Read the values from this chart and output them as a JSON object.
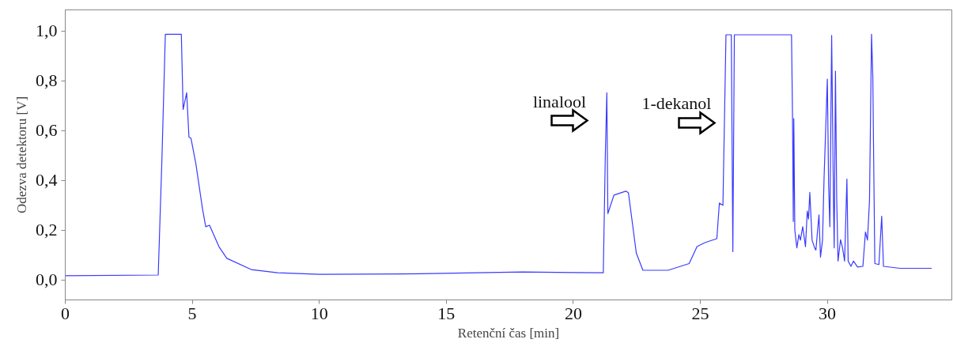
{
  "chart_data": {
    "type": "line",
    "xlabel": "Retenční čas [min]",
    "ylabel": "Odezva detektoru [V]",
    "x": [
      0,
      3.66,
      3.81,
      3.94,
      4.57,
      4.64,
      4.78,
      4.87,
      4.95,
      5.14,
      5.4,
      5.53,
      5.68,
      6.05,
      6.36,
      7.32,
      8.36,
      10,
      14,
      18,
      20,
      21.18,
      21.26,
      21.32,
      21.36,
      21.6,
      22.07,
      22.17,
      22.48,
      22.74,
      23.73,
      24.56,
      24.87,
      25.18,
      25.65,
      25.75,
      25.89,
      26.01,
      26.22,
      26.28,
      26.34,
      28.59,
      28.63,
      28.66,
      28.68,
      28.72,
      28.8,
      28.88,
      28.94,
      29.03,
      29.14,
      29.21,
      29.26,
      29.31,
      29.4,
      29.5,
      29.55,
      29.67,
      29.73,
      29.81,
      29.87,
      30.0,
      30.05,
      30.1,
      30.17,
      30.24,
      30.27,
      30.32,
      30.37,
      30.42,
      30.52,
      30.6,
      30.68,
      30.77,
      30.82,
      30.93,
      31.03,
      31.19,
      31.4,
      31.5,
      31.58,
      31.66,
      31.74,
      31.79,
      31.83,
      31.87,
      32.03,
      32.14,
      32.21,
      32.86,
      34.11
    ],
    "series": [
      {
        "color": "#3a3aff",
        "values": [
          0.017,
          0.02,
          0.5,
          0.987,
          0.987,
          0.685,
          0.752,
          0.574,
          0.569,
          0.468,
          0.288,
          0.214,
          0.22,
          0.134,
          0.087,
          0.042,
          0.029,
          0.023,
          0.025,
          0.032,
          0.03,
          0.029,
          0.5,
          0.752,
          0.267,
          0.341,
          0.357,
          0.35,
          0.108,
          0.039,
          0.039,
          0.066,
          0.134,
          0.15,
          0.166,
          0.309,
          0.3,
          0.985,
          0.985,
          0.114,
          0.985,
          0.985,
          0.648,
          0.235,
          0.648,
          0.2,
          0.129,
          0.182,
          0.16,
          0.214,
          0.134,
          0.277,
          0.245,
          0.352,
          0.16,
          0.129,
          0.12,
          0.262,
          0.092,
          0.16,
          0.405,
          0.807,
          0.384,
          0.214,
          0.982,
          0.33,
          0.129,
          0.839,
          0.32,
          0.076,
          0.162,
          0.128,
          0.076,
          0.405,
          0.076,
          0.055,
          0.076,
          0.052,
          0.055,
          0.193,
          0.16,
          0.32,
          0.987,
          0.818,
          0.426,
          0.066,
          0.062,
          0.256,
          0.055,
          0.047,
          0.047
        ]
      }
    ],
    "xlim": [
      0,
      34.9
    ],
    "ylim": [
      -0.08,
      1.085
    ],
    "xticks": [
      0,
      5,
      10,
      15,
      20,
      25,
      30
    ],
    "yticks": [
      {
        "value": 0,
        "label": "0,0"
      },
      {
        "value": 0.2,
        "label": "0,2"
      },
      {
        "value": 0.4,
        "label": "0,4"
      },
      {
        "value": 0.6,
        "label": "0,6"
      },
      {
        "value": 0.8,
        "label": "0,8"
      },
      {
        "value": 1.0,
        "label": "1,0"
      }
    ],
    "annotations": [
      "linalool",
      "1-dekanol"
    ],
    "grid": false
  }
}
